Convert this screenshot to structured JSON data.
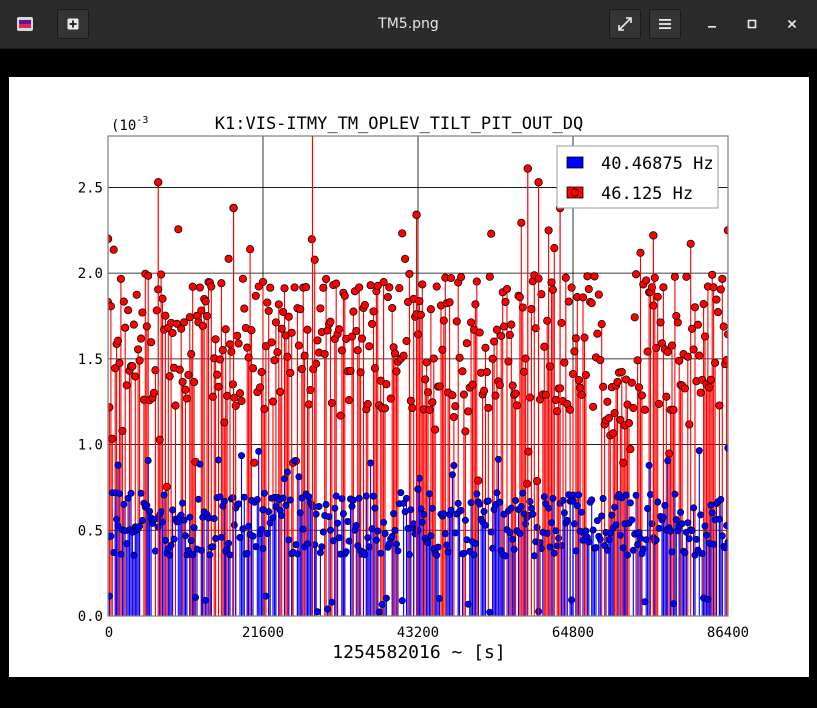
{
  "window": {
    "title": "TM5.png",
    "icons": {
      "app": "image-viewer-icon",
      "new_tab": "plus-icon",
      "fullscreen": "expand-icon",
      "menu": "hamburger-menu-icon",
      "minimize": "minimize-icon",
      "maximize": "maximize-icon",
      "close": "close-icon"
    }
  },
  "colors": {
    "series_blue": "#0000ff",
    "series_red": "#ff0000",
    "grid": "#000000"
  },
  "chart_data": {
    "type": "scatter",
    "style": "stem",
    "title": "K1:VIS-ITMY_TM_OPLEV_TILT_PIT_OUT_DQ",
    "xlabel": "1254582016 ~ [s]",
    "ylabel": "",
    "y_scale_label": "(10",
    "y_scale_exponent": "-3",
    "xlim": [
      0,
      86400
    ],
    "ylim": [
      0,
      2.8
    ],
    "x_ticks": [
      0,
      21600,
      43200,
      64800,
      86400
    ],
    "x_tick_labels": [
      "0",
      "21600",
      "43200",
      "64800",
      "86400"
    ],
    "y_ticks": [
      0,
      0.5,
      1.0,
      1.5,
      2.0,
      2.5
    ],
    "y_tick_labels": [
      "0.0",
      "0.5",
      "1.0",
      "1.5",
      "2.0",
      "2.5"
    ],
    "grid": true,
    "legend_position": "top-right",
    "series": [
      {
        "name": "40.46875 Hz",
        "color": "#0000ff",
        "x_range": [
          0,
          86400
        ],
        "sample_interval": 200,
        "typical_range": [
          0.35,
          0.72
        ],
        "occasional_max": 0.98,
        "x": [
          1400,
          21600,
          43200,
          64800,
          86400
        ],
        "values": [
          0.88,
          0.62,
          0.74,
          0.67,
          0.98
        ]
      },
      {
        "name": "46.125 Hz",
        "color": "#ff0000",
        "x_range": [
          0,
          86400
        ],
        "sample_interval": 200,
        "typical_range": [
          1.2,
          2.0
        ],
        "occasional_min": 0.0,
        "quiet_interval_x": [
          69000,
          73000
        ],
        "quiet_interval_range": [
          0.85,
          1.45
        ],
        "x": [
          0,
          7000,
          17500,
          28500,
          43000,
          58500,
          60000,
          63000,
          76000,
          86400
        ],
        "values": [
          2.2,
          2.53,
          2.38,
          2.82,
          2.34,
          2.61,
          2.53,
          2.38,
          2.22,
          2.25
        ]
      }
    ]
  }
}
